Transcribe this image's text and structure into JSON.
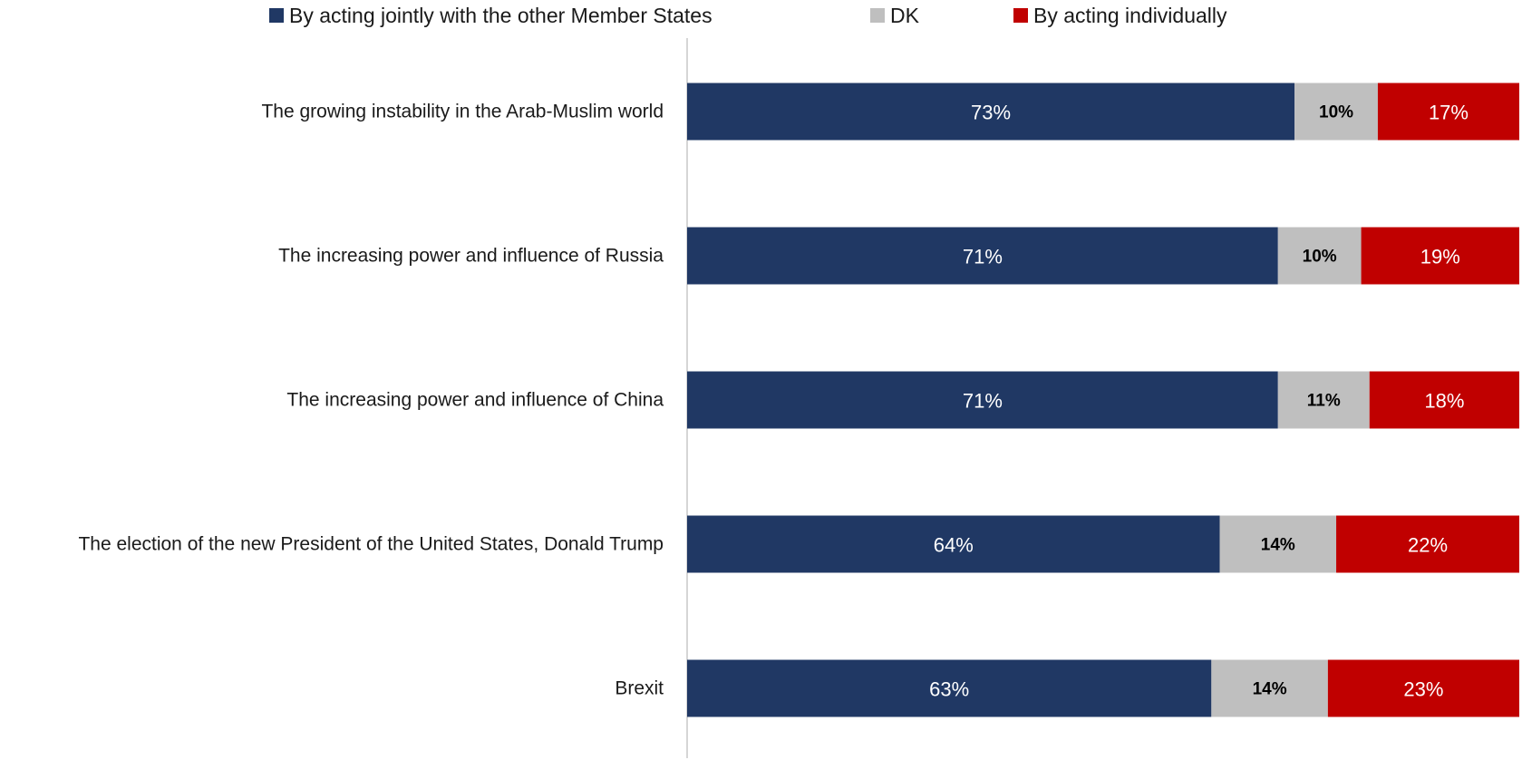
{
  "chart_data": {
    "type": "bar",
    "orientation": "horizontal",
    "stacked": true,
    "normalized_percent": true,
    "title": "",
    "xlabel": "",
    "ylabel": "",
    "xlim": [
      0,
      100
    ],
    "grid": false,
    "legend_position": "top",
    "categories": [
      "The growing instability in the Arab-Muslim world",
      "The increasing power and influence of Russia",
      "The increasing power and influence of China",
      "The election of the new President of the United States, Donald Trump",
      "Brexit"
    ],
    "series": [
      {
        "name": "By acting jointly with the other Member States",
        "color": "#203864",
        "label_color": "#ffffff",
        "label_bold": false,
        "values": [
          73,
          71,
          71,
          64,
          63
        ],
        "labels": [
          "73%",
          "71%",
          "71%",
          "64%",
          "63%"
        ]
      },
      {
        "name": "DK",
        "color": "#bfbfbf",
        "label_color": "#000000",
        "label_bold": true,
        "values": [
          10,
          10,
          11,
          14,
          14
        ],
        "labels": [
          "10%",
          "10%",
          "11%",
          "14%",
          "14%"
        ]
      },
      {
        "name": "By acting individually",
        "color": "#c00000",
        "label_color": "#ffffff",
        "label_bold": false,
        "values": [
          17,
          19,
          18,
          22,
          23
        ],
        "labels": [
          "17%",
          "19%",
          "18%",
          "22%",
          "23%"
        ]
      }
    ]
  }
}
